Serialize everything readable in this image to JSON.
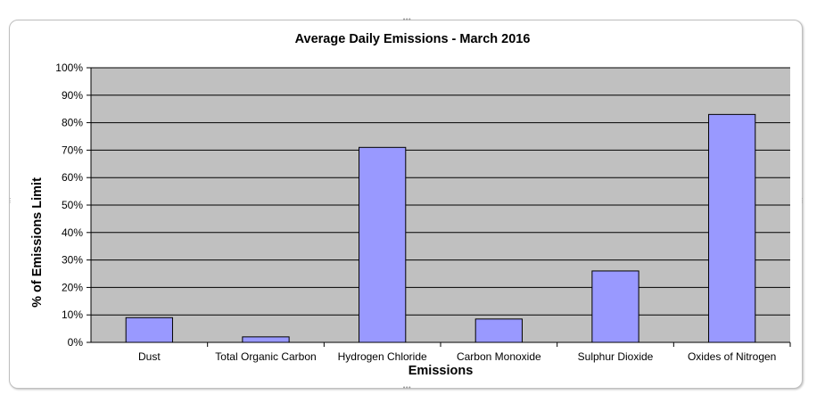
{
  "chart_data": {
    "type": "bar",
    "title": "Average Daily Emissions - March 2016",
    "xlabel": "Emissions",
    "ylabel": "% of Emissions Limit",
    "categories": [
      "Dust",
      "Total Organic Carbon",
      "Hydrogen Chloride",
      "Carbon Monoxide",
      "Sulphur Dioxide",
      "Oxides of Nitrogen"
    ],
    "values": [
      9,
      2,
      71,
      8.5,
      26,
      83
    ],
    "ylim": [
      0,
      100
    ],
    "yticks": [
      "0%",
      "10%",
      "20%",
      "30%",
      "40%",
      "50%",
      "60%",
      "70%",
      "80%",
      "90%",
      "100%"
    ],
    "grid": true,
    "legend": "none",
    "colors": {
      "bar": "#9999ff",
      "bar_border": "#000000",
      "plot_bg": "#c0c0c0",
      "grid": "#000000"
    }
  }
}
